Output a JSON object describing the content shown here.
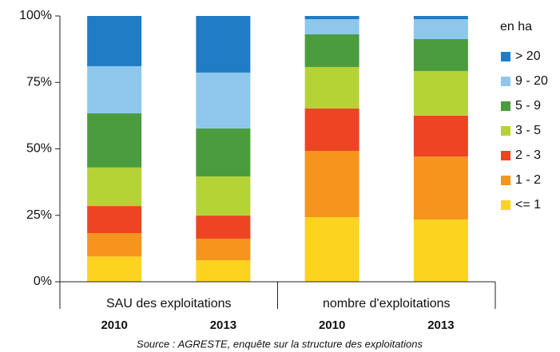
{
  "chart_data": {
    "type": "stacked-bar",
    "groups": [
      {
        "name": "SAU des exploitations",
        "categories": [
          "2010",
          "2013"
        ]
      },
      {
        "name": "nombre d'exploitations",
        "categories": [
          "2010",
          "2013"
        ]
      }
    ],
    "legend_title": "en ha",
    "series": [
      {
        "name": "<= 1",
        "color": "#fcd31f",
        "values": [
          9.5,
          8.1,
          24.3,
          23.4
        ]
      },
      {
        "name": "1 - 2",
        "color": "#f7941d",
        "values": [
          8.8,
          8.1,
          24.9,
          23.7
        ]
      },
      {
        "name": "2 - 3",
        "color": "#ee4424",
        "values": [
          10.2,
          8.7,
          16.0,
          15.4
        ]
      },
      {
        "name": "3 - 5",
        "color": "#b5d334",
        "values": [
          14.5,
          14.7,
          15.6,
          16.8
        ]
      },
      {
        "name": "5 - 9",
        "color": "#4b9c3f",
        "values": [
          20.4,
          18.1,
          12.3,
          12.0
        ]
      },
      {
        "name": "9 - 20",
        "color": "#8dc8ec",
        "values": [
          17.7,
          21.0,
          5.7,
          7.5
        ]
      },
      {
        "name": "> 20",
        "color": "#1f7cc5",
        "values": [
          18.9,
          21.3,
          1.2,
          1.2
        ]
      }
    ],
    "ylim": [
      0,
      100
    ],
    "yticks": [
      {
        "value": 0,
        "label": "0%"
      },
      {
        "value": 25,
        "label": "25%"
      },
      {
        "value": 50,
        "label": "50%"
      },
      {
        "value": 75,
        "label": "75%"
      },
      {
        "value": 100,
        "label": "100%"
      }
    ],
    "source": "Source :  AGRESTE, enquête sur la structure des exploitations"
  }
}
